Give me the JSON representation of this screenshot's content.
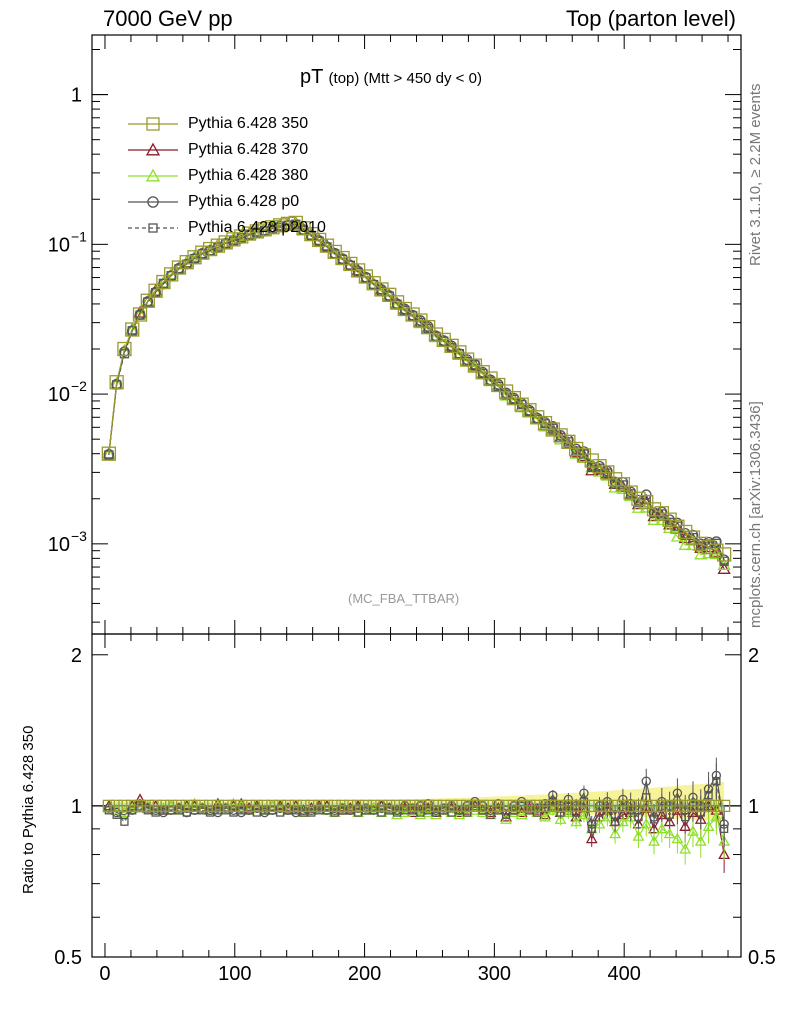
{
  "header": {
    "left": "7000 GeV pp",
    "right": "Top (parton level)"
  },
  "side_labels": {
    "top": "Rivet 3.1.10, ≥ 2.2M events",
    "bottom": "mcplots.cern.ch [arXiv:1306.3436]"
  },
  "analysis_tag": "(MC_FBA_TTBAR)",
  "title": {
    "main": "pT",
    "sub": "(top)  (Mtt > 450 dy < 0)"
  },
  "ratio_ylabel": "Ratio to Pythia 6.428 350",
  "legend": [
    {
      "label": "Pythia 6.428 350",
      "color": "#9a9a2e",
      "marker": "square"
    },
    {
      "label": "Pythia 6.428 370",
      "color": "#8b1a2b",
      "marker": "triangle"
    },
    {
      "label": "Pythia 6.428 380",
      "color": "#8fe02a",
      "marker": "triangle"
    },
    {
      "label": "Pythia 6.428 p0",
      "color": "#555555",
      "marker": "circle"
    },
    {
      "label": "Pythia 6.428 p2010",
      "color": "#555555",
      "marker": "square-dashed"
    }
  ],
  "chart_data": {
    "type": "line",
    "x": [
      3,
      9,
      15,
      21,
      27,
      33,
      39,
      45,
      51,
      57,
      63,
      69,
      75,
      81,
      87,
      93,
      99,
      105,
      111,
      117,
      123,
      129,
      135,
      141,
      147,
      153,
      159,
      165,
      171,
      177,
      183,
      189,
      195,
      201,
      207,
      213,
      219,
      225,
      231,
      237,
      243,
      249,
      255,
      261,
      267,
      273,
      279,
      285,
      291,
      297,
      303,
      309,
      315,
      321,
      327,
      333,
      339,
      345,
      351,
      357,
      363,
      369,
      375,
      381,
      387,
      393,
      399,
      405,
      411,
      417,
      423,
      429,
      435,
      441,
      447,
      453,
      459,
      465,
      471,
      477
    ],
    "reference_values": [
      0.004,
      0.012,
      0.02,
      0.027,
      0.034,
      0.042,
      0.049,
      0.056,
      0.063,
      0.07,
      0.076,
      0.082,
      0.088,
      0.093,
      0.098,
      0.103,
      0.108,
      0.113,
      0.118,
      0.122,
      0.126,
      0.13,
      0.134,
      0.137,
      0.139,
      0.128,
      0.117,
      0.107,
      0.098,
      0.089,
      0.081,
      0.074,
      0.067,
      0.061,
      0.055,
      0.05,
      0.046,
      0.041,
      0.037,
      0.034,
      0.031,
      0.028,
      0.025,
      0.023,
      0.021,
      0.019,
      0.017,
      0.0155,
      0.014,
      0.0127,
      0.0115,
      0.0104,
      0.0094,
      0.0085,
      0.0078,
      0.007,
      0.0064,
      0.0058,
      0.0053,
      0.0048,
      0.0043,
      0.0039,
      0.0036,
      0.0033,
      0.003,
      0.0027,
      0.0025,
      0.0022,
      0.002,
      0.0019,
      0.0017,
      0.0016,
      0.00145,
      0.0013,
      0.0012,
      0.0011,
      0.001,
      0.00095,
      0.0009,
      0.00085
    ],
    "ratio_series": [
      {
        "name": "Pythia 6.428 350",
        "values": [
          1,
          1,
          1,
          1,
          1,
          1,
          1,
          1,
          1,
          1,
          1,
          1,
          1,
          1,
          1,
          1,
          1,
          1,
          1,
          1,
          1,
          1,
          1,
          1,
          1,
          1,
          1,
          1,
          1,
          1,
          1,
          1,
          1,
          1,
          1,
          1,
          1,
          1,
          1,
          1,
          1,
          1,
          1,
          1,
          1,
          1,
          1,
          1,
          1,
          1,
          1,
          1,
          1,
          1,
          1,
          1,
          1,
          1,
          1,
          1,
          1,
          1,
          1,
          1,
          1,
          1,
          1,
          1,
          1,
          1,
          1,
          1,
          1,
          1,
          1,
          1,
          1,
          1,
          1,
          1
        ]
      },
      {
        "name": "Pythia 6.428 370",
        "values": [
          1.0,
          0.98,
          0.97,
          1.0,
          1.03,
          0.99,
          1.0,
          0.98,
          1.0,
          0.99,
          1.0,
          1.0,
          0.99,
          0.98,
          1.01,
          0.99,
          1.0,
          1.01,
          0.99,
          1.0,
          0.98,
          1.0,
          1.0,
          0.99,
          1.0,
          0.98,
          0.99,
          1.0,
          1.0,
          0.97,
          0.98,
          0.99,
          1.0,
          0.98,
          0.99,
          1.0,
          0.99,
          0.98,
          0.99,
          0.97,
          0.98,
          0.99,
          0.97,
          0.98,
          0.99,
          0.97,
          0.98,
          1.0,
          0.98,
          0.97,
          0.99,
          0.95,
          0.98,
          0.97,
          0.99,
          0.98,
          0.96,
          1.0,
          0.97,
          0.98,
          0.95,
          0.99,
          0.86,
          0.95,
          0.98,
          0.93,
          0.96,
          0.97,
          0.92,
          0.99,
          0.9,
          0.96,
          0.93,
          0.98,
          0.91,
          0.97,
          0.94,
          1.0,
          0.98,
          0.8
        ]
      },
      {
        "name": "Pythia 6.428 380",
        "values": [
          0.99,
          0.98,
          0.97,
          0.99,
          1.0,
          1.0,
          0.98,
          0.99,
          1.0,
          0.98,
          0.99,
          1.01,
          0.99,
          0.98,
          1.0,
          0.99,
          1.01,
          1.0,
          0.98,
          0.99,
          0.98,
          1.0,
          0.99,
          0.98,
          0.99,
          0.97,
          0.98,
          0.99,
          0.98,
          0.97,
          0.99,
          0.98,
          0.97,
          0.98,
          0.99,
          0.97,
          0.98,
          0.96,
          0.97,
          0.98,
          0.96,
          0.97,
          0.96,
          0.98,
          0.97,
          0.96,
          0.97,
          0.98,
          0.97,
          0.96,
          0.98,
          0.94,
          0.97,
          0.96,
          0.98,
          0.97,
          0.95,
          0.98,
          0.94,
          0.97,
          0.93,
          0.96,
          0.9,
          0.92,
          0.95,
          0.88,
          0.93,
          0.95,
          0.87,
          0.92,
          0.85,
          0.9,
          0.88,
          0.86,
          0.82,
          0.89,
          0.85,
          0.91,
          0.95,
          0.85
        ]
      },
      {
        "name": "Pythia 6.428 p0",
        "values": [
          0.99,
          0.97,
          0.96,
          0.98,
          1.0,
          0.99,
          0.98,
          0.97,
          0.98,
          0.99,
          0.97,
          0.98,
          0.99,
          0.98,
          0.97,
          0.99,
          0.98,
          0.97,
          0.98,
          0.99,
          0.97,
          0.98,
          0.99,
          0.98,
          0.97,
          0.98,
          0.98,
          0.99,
          0.98,
          0.98,
          0.99,
          0.98,
          0.99,
          0.99,
          0.98,
          1.0,
          0.99,
          0.98,
          1.0,
          0.99,
          1.0,
          1.01,
          0.98,
          0.99,
          1.0,
          0.98,
          1.0,
          1.02,
          1.0,
          0.98,
          1.01,
          0.98,
          1.0,
          1.02,
          1.0,
          0.99,
          1.01,
          1.05,
          1.0,
          1.03,
          1.0,
          1.06,
          0.92,
          1.0,
          1.02,
          0.96,
          1.03,
          1.01,
          0.98,
          1.12,
          0.95,
          1.02,
          1.0,
          1.06,
          0.98,
          1.04,
          1.0,
          1.08,
          1.15,
          0.92
        ]
      },
      {
        "name": "Pythia 6.428 p2010",
        "values": [
          0.98,
          0.96,
          0.93,
          0.98,
          0.99,
          0.98,
          0.97,
          0.98,
          0.98,
          0.98,
          0.97,
          0.98,
          0.98,
          0.97,
          0.98,
          0.98,
          0.97,
          0.98,
          0.98,
          0.97,
          0.98,
          0.98,
          0.97,
          0.98,
          0.98,
          0.97,
          0.97,
          0.98,
          0.98,
          0.97,
          0.98,
          0.98,
          0.97,
          0.98,
          0.98,
          0.97,
          0.98,
          0.97,
          0.98,
          0.98,
          0.97,
          0.98,
          0.97,
          0.98,
          0.97,
          0.98,
          0.97,
          1.01,
          0.98,
          0.96,
          0.98,
          0.96,
          0.98,
          1.0,
          0.98,
          0.97,
          0.99,
          1.02,
          0.97,
          1.0,
          0.97,
          1.02,
          0.9,
          0.97,
          0.99,
          0.93,
          0.99,
          0.98,
          0.95,
          1.04,
          0.94,
          0.99,
          0.96,
          1.01,
          0.95,
          1.0,
          0.97,
          1.05,
          1.12,
          0.9
        ]
      }
    ],
    "main_x_ticks": [
      "0",
      "100",
      "200",
      "300",
      "400"
    ],
    "main_y_ticks": [
      "1",
      "10^-1",
      "10^-2",
      "10^-3"
    ],
    "ratio_y_ticks": [
      "0.5",
      "1",
      "2"
    ],
    "xlim": [
      -10,
      490
    ],
    "main_ylim": [
      0.00025,
      2.5
    ],
    "ratio_ylim": [
      0.5,
      2.2
    ],
    "main_scale": "log",
    "ratio_scale": "log",
    "legend_position": "top-left"
  }
}
